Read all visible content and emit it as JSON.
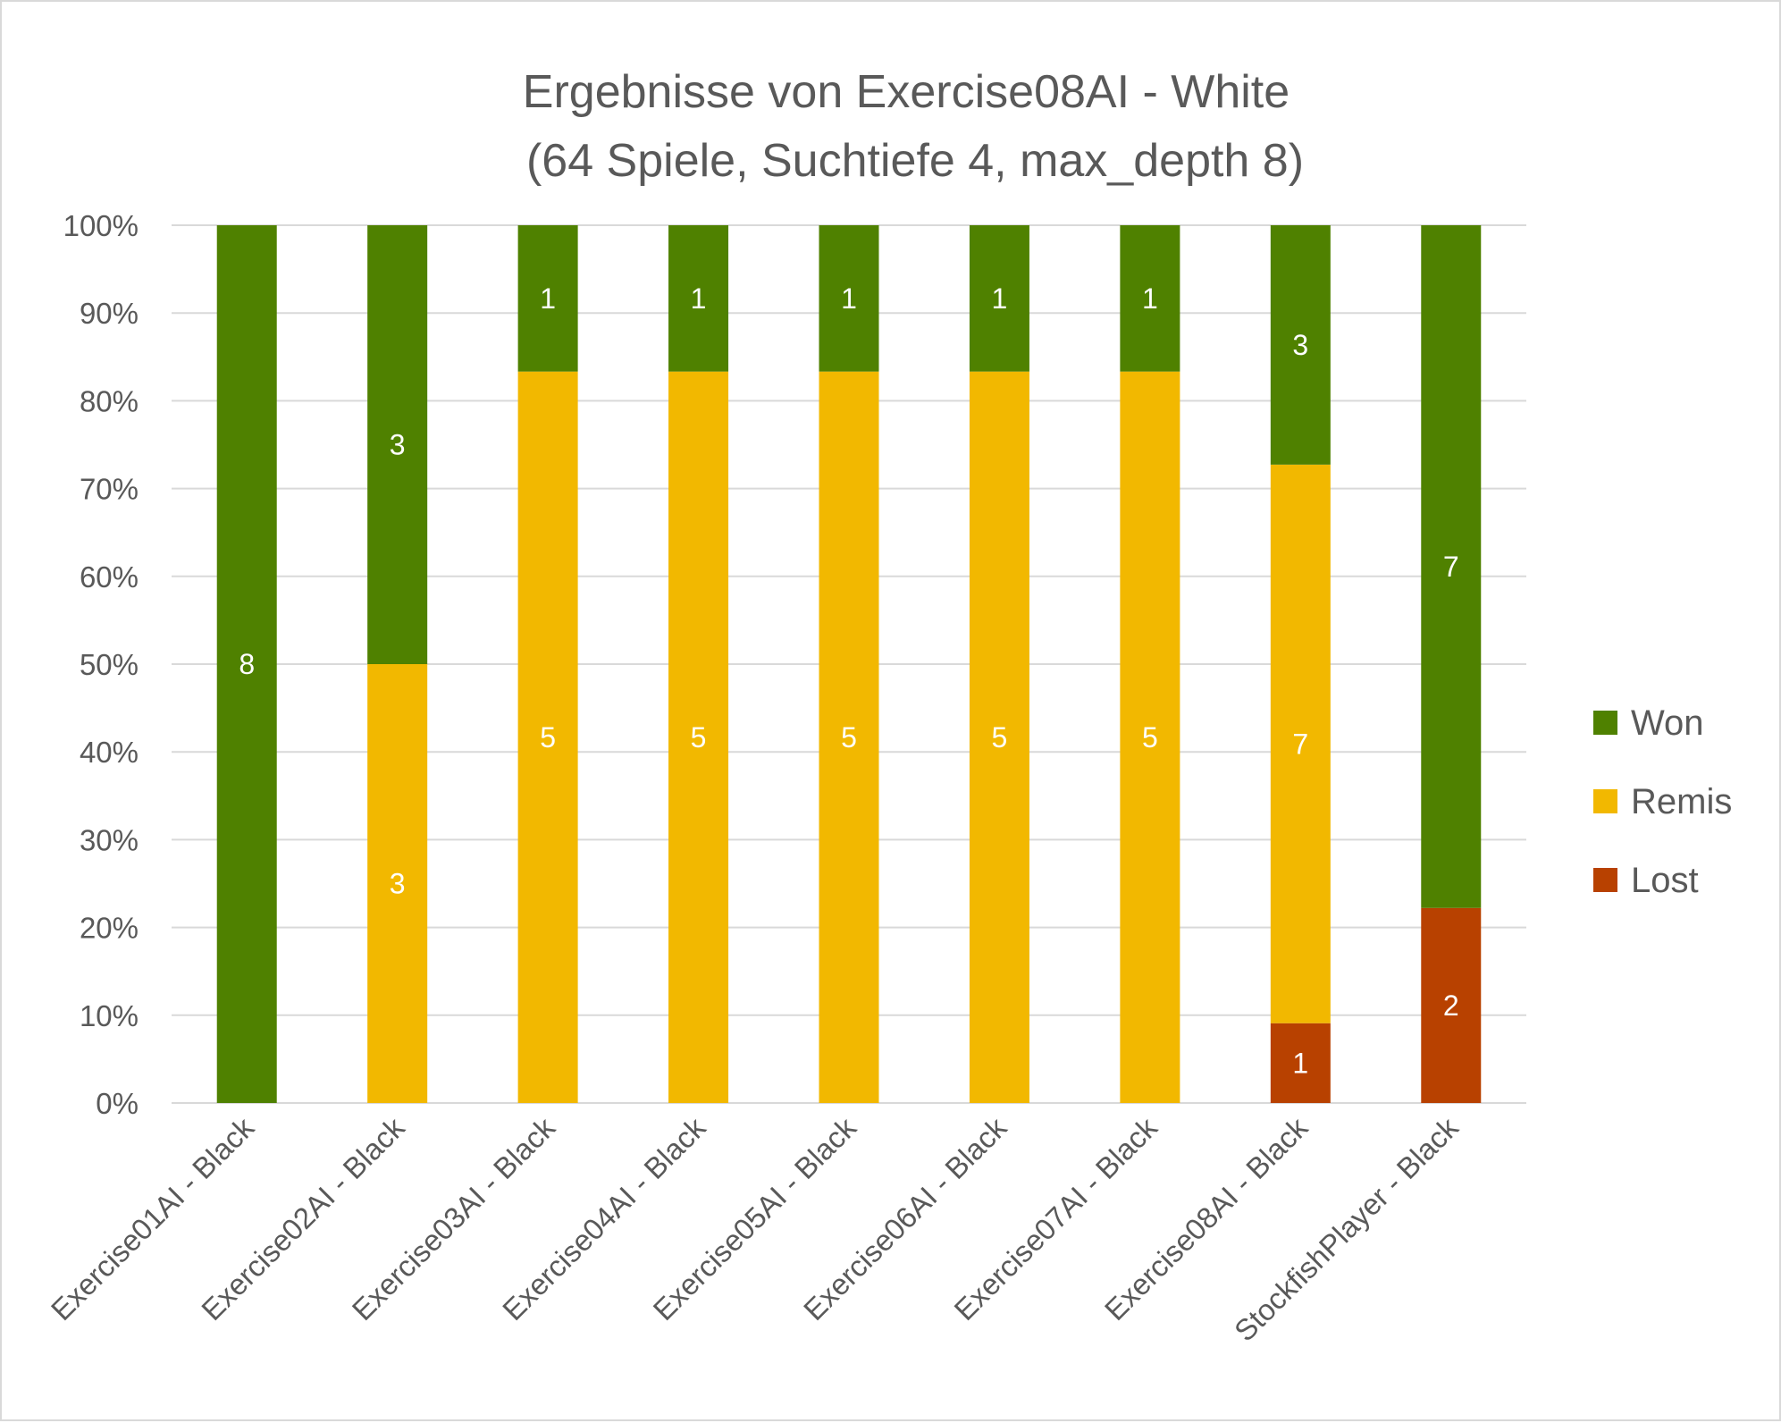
{
  "chart_data": {
    "type": "bar",
    "stacking": "percent",
    "title": "Ergebnisse von Exercise08AI - White",
    "subtitle": "(64 Spiele, Suchtiefe 4, max_depth 8)",
    "categories": [
      "Exercise01AI - Black",
      "Exercise02AI - Black",
      "Exercise03AI - Black",
      "Exercise04AI - Black",
      "Exercise05AI - Black",
      "Exercise06AI - Black",
      "Exercise07AI - Black",
      "Exercise08AI - Black",
      "StockfishPlayer - Black"
    ],
    "series": [
      {
        "name": "Lost",
        "color": "#b84100",
        "values": [
          0,
          0,
          0,
          0,
          0,
          0,
          0,
          1,
          2
        ]
      },
      {
        "name": "Remis",
        "color": "#f2b800",
        "values": [
          0,
          3,
          5,
          5,
          5,
          5,
          5,
          7,
          0
        ]
      },
      {
        "name": "Won",
        "color": "#4f8100",
        "values": [
          8,
          3,
          1,
          1,
          1,
          1,
          1,
          3,
          7
        ]
      }
    ],
    "yticks": [
      "0%",
      "10%",
      "20%",
      "30%",
      "40%",
      "50%",
      "60%",
      "70%",
      "80%",
      "90%",
      "100%"
    ],
    "ylim": [
      0,
      100
    ],
    "grid": true,
    "legend": {
      "position": "right",
      "order": [
        "Won",
        "Remis",
        "Lost"
      ]
    }
  }
}
